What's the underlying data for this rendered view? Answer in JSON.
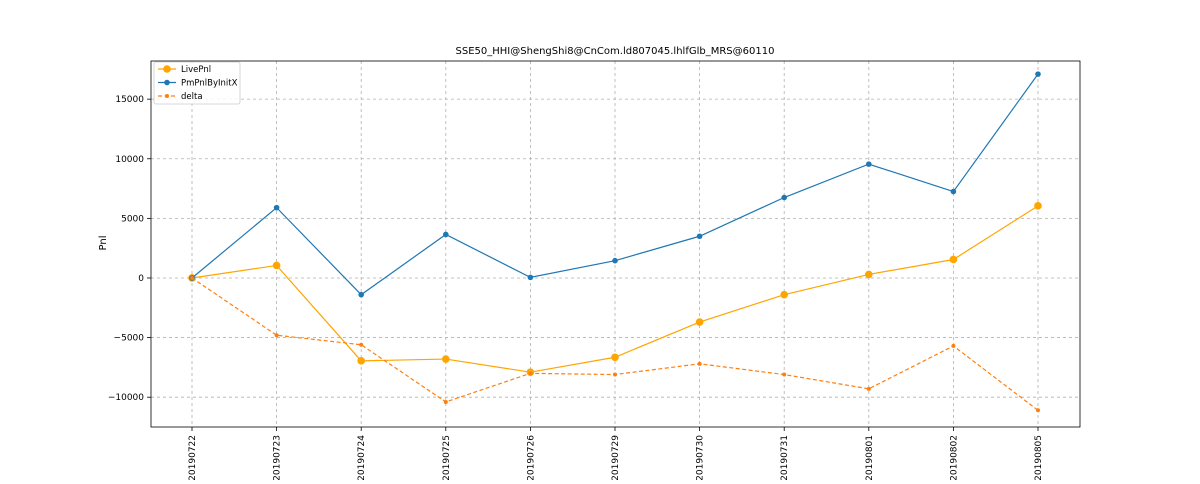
{
  "chart_data": {
    "type": "line",
    "title": "SSE50_HHI@ShengShi8@CnCom.ld807045.lhlfGlb_MRS@60110",
    "xlabel": "",
    "ylabel": "Pnl",
    "categories": [
      "20190722",
      "20190723",
      "20190724",
      "20190725",
      "20190726",
      "20190729",
      "20190730",
      "20190731",
      "20190801",
      "20190802",
      "20190805"
    ],
    "ylim": [
      -12500,
      18200
    ],
    "yticks": [
      -10000,
      -5000,
      0,
      5000,
      10000,
      15000
    ],
    "ytick_labels": [
      "−10000",
      "−5000",
      "0",
      "5000",
      "10000",
      "15000"
    ],
    "grid": true,
    "legend_position": "top-left",
    "series": [
      {
        "name": "LivePnl",
        "color": "#ffa500",
        "style": "solid",
        "marker": "large-circle",
        "values": [
          0,
          1050,
          -6950,
          -6800,
          -7900,
          -6650,
          -3700,
          -1400,
          300,
          1550,
          6050
        ]
      },
      {
        "name": "PmPnlByInitX",
        "color": "#1f77b4",
        "style": "solid",
        "marker": "circle",
        "values": [
          0,
          5900,
          -1400,
          3650,
          50,
          1450,
          3500,
          6750,
          9550,
          7250,
          17100
        ]
      },
      {
        "name": "delta",
        "color": "#ff7f0e",
        "style": "dashed",
        "marker": "small-circle",
        "values": [
          0,
          -4800,
          -5600,
          -10400,
          -8000,
          -8100,
          -7200,
          -8100,
          -9300,
          -5700,
          -11100
        ]
      }
    ]
  }
}
